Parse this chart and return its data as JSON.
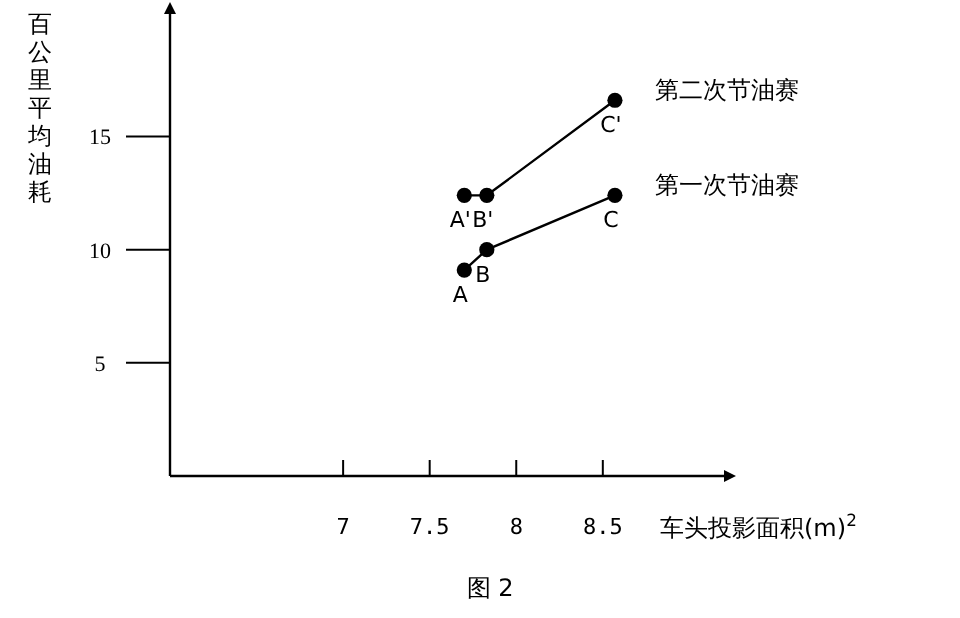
{
  "chart_data": {
    "type": "line",
    "xlabel": "车头投影面积(m)$^{2}$",
    "ylabel": "百公里平均油耗",
    "marker": "circle",
    "legend": false,
    "grid": false,
    "xlim": [
      6,
      9.2
    ],
    "ylim": [
      0,
      20.5
    ],
    "xticks": [
      7,
      7.5,
      8,
      8.5
    ],
    "yticks": [
      5,
      10,
      15
    ],
    "series": [
      {
        "name": "第二次节油赛",
        "color": "#000000",
        "x": [
          7.7,
          7.83,
          8.57
        ],
        "values": [
          12.4,
          12.4,
          16.6
        ]
      },
      {
        "name": "第一次节油赛",
        "color": "#000000",
        "x": [
          7.7,
          7.83,
          8.57
        ],
        "values": [
          9.1,
          10.0,
          12.4
        ]
      }
    ],
    "annotations": [
      {
        "text": "A'",
        "x": 7.7,
        "y": 12.4
      },
      {
        "text": "B'",
        "x": 7.83,
        "y": 12.4
      },
      {
        "text": "C'",
        "x": 8.57,
        "y": 16.6
      },
      {
        "text": "A",
        "x": 7.7,
        "y": 9.1
      },
      {
        "text": "B",
        "x": 7.83,
        "y": 10.0
      },
      {
        "text": "C",
        "x": 8.57,
        "y": 12.4
      },
      "图 2"
    ]
  }
}
